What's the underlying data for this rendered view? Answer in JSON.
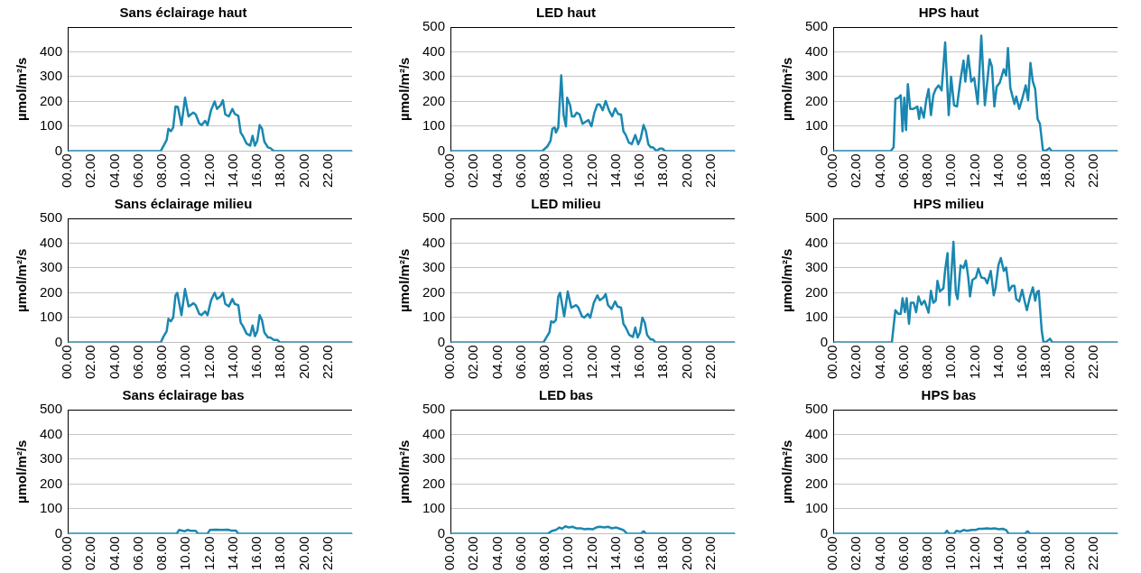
{
  "chart_data": [
    {
      "type": "line",
      "title": "Sans éclairage haut",
      "ylabel": "µmol/m²/s",
      "xlim": [
        0,
        24
      ],
      "xticks": [
        {
          "value": 0,
          "label": "00.00"
        },
        {
          "value": 2,
          "label": "02.00"
        },
        {
          "value": 4,
          "label": "04.00"
        },
        {
          "value": 6,
          "label": "06.00"
        },
        {
          "value": 8,
          "label": "08.00"
        },
        {
          "value": 10,
          "label": "10.00"
        },
        {
          "value": 12,
          "label": "12.00"
        },
        {
          "value": 14,
          "label": "14.00"
        },
        {
          "value": 16,
          "label": "16.00"
        },
        {
          "value": 18,
          "label": "18.00"
        },
        {
          "value": 20,
          "label": "20.00"
        },
        {
          "value": 22,
          "label": "22.00"
        }
      ],
      "ylim": [
        0,
        500
      ],
      "yticks": [
        0,
        100,
        200,
        300,
        400
      ],
      "grid": "y",
      "series": [
        {
          "color": "#1a87b0",
          "x": [
            0,
            7.85,
            8.1,
            8.35,
            8.5,
            8.7,
            8.9,
            9.1,
            9.3,
            9.6,
            9.9,
            10.2,
            10.4,
            10.6,
            10.8,
            11.1,
            11.3,
            11.6,
            11.8,
            12.1,
            12.4,
            12.6,
            12.9,
            13.1,
            13.3,
            13.6,
            13.9,
            14.1,
            14.4,
            14.6,
            14.8,
            15.1,
            15.4,
            15.6,
            15.8,
            16.0,
            16.2,
            16.4,
            16.6,
            16.9,
            17.1,
            17.4,
            24
          ],
          "values": [
            0,
            0,
            22,
            45,
            90,
            80,
            95,
            180,
            178,
            105,
            215,
            140,
            148,
            155,
            148,
            112,
            105,
            122,
            105,
            165,
            200,
            170,
            185,
            205,
            148,
            140,
            170,
            150,
            142,
            75,
            60,
            30,
            22,
            62,
            22,
            42,
            105,
            90,
            38,
            15,
            12,
            0,
            0
          ]
        }
      ]
    },
    {
      "type": "line",
      "title": "LED haut",
      "ylabel": "µmol/m²/s",
      "xlim": [
        0,
        24
      ],
      "xticks": [
        {
          "value": 0,
          "label": "00.00"
        },
        {
          "value": 2,
          "label": "02.00"
        },
        {
          "value": 4,
          "label": "04.00"
        },
        {
          "value": 6,
          "label": "06.00"
        },
        {
          "value": 8,
          "label": "08.00"
        },
        {
          "value": 10,
          "label": "10.00"
        },
        {
          "value": 12,
          "label": "12.00"
        },
        {
          "value": 14,
          "label": "14.00"
        },
        {
          "value": 16,
          "label": "16.00"
        },
        {
          "value": 18,
          "label": "18.00"
        },
        {
          "value": 20,
          "label": "20.00"
        },
        {
          "value": 22,
          "label": "22.00"
        }
      ],
      "ylim": [
        0,
        500
      ],
      "yticks": [
        0,
        100,
        200,
        300,
        400,
        500
      ],
      "grid": "y",
      "series": [
        {
          "color": "#1a87b0",
          "x": [
            0,
            7.75,
            8.2,
            8.45,
            8.6,
            8.8,
            8.9,
            9.1,
            9.35,
            9.55,
            9.75,
            9.85,
            10.1,
            10.25,
            10.45,
            10.65,
            10.9,
            11.15,
            11.4,
            11.65,
            11.9,
            12.15,
            12.4,
            12.6,
            12.85,
            13.1,
            13.4,
            13.65,
            13.9,
            14.15,
            14.4,
            14.6,
            14.8,
            15.05,
            15.3,
            15.6,
            15.85,
            16.05,
            16.3,
            16.5,
            16.7,
            16.9,
            17.1,
            17.4,
            17.65,
            17.9,
            18.1,
            24
          ],
          "values": [
            0,
            0,
            20,
            42,
            90,
            95,
            75,
            95,
            305,
            145,
            100,
            215,
            185,
            140,
            140,
            155,
            148,
            110,
            118,
            125,
            100,
            155,
            188,
            188,
            165,
            202,
            162,
            140,
            172,
            150,
            147,
            80,
            65,
            35,
            28,
            65,
            28,
            50,
            105,
            80,
            28,
            15,
            15,
            0,
            10,
            10,
            0,
            0
          ]
        }
      ]
    },
    {
      "type": "line",
      "title": "HPS haut",
      "ylabel": "µmol/m²/s",
      "xlim": [
        0,
        24
      ],
      "xticks": [
        {
          "value": 0,
          "label": "00.00"
        },
        {
          "value": 2,
          "label": "02.00"
        },
        {
          "value": 4,
          "label": "04.00"
        },
        {
          "value": 6,
          "label": "06.00"
        },
        {
          "value": 8,
          "label": "08.00"
        },
        {
          "value": 10,
          "label": "10.00"
        },
        {
          "value": 12,
          "label": "12.00"
        },
        {
          "value": 14,
          "label": "14.00"
        },
        {
          "value": 16,
          "label": "16.00"
        },
        {
          "value": 18,
          "label": "18.00"
        },
        {
          "value": 20,
          "label": "20.00"
        },
        {
          "value": 22,
          "label": "22.00"
        }
      ],
      "ylim": [
        0,
        500
      ],
      "yticks": [
        0,
        100,
        200,
        300,
        400,
        500
      ],
      "grid": "y",
      "series": [
        {
          "color": "#1a87b0",
          "x": [
            0,
            4.85,
            5.1,
            5.25,
            5.5,
            5.7,
            5.85,
            6.0,
            6.15,
            6.3,
            6.5,
            6.75,
            6.95,
            7.1,
            7.25,
            7.4,
            7.65,
            7.85,
            8.05,
            8.25,
            8.45,
            8.65,
            8.9,
            9.15,
            9.45,
            9.75,
            9.95,
            10.2,
            10.45,
            10.75,
            11.0,
            11.15,
            11.4,
            11.65,
            11.9,
            12.2,
            12.5,
            12.8,
            13.2,
            13.4,
            13.6,
            13.8,
            14.05,
            14.4,
            14.6,
            14.75,
            14.95,
            15.3,
            15.45,
            15.7,
            15.95,
            16.25,
            16.45,
            16.65,
            16.85,
            17.05,
            17.25,
            17.45,
            17.7,
            17.9,
            18.25,
            18.45,
            24
          ],
          "values": [
            0,
            0,
            15,
            210,
            215,
            225,
            80,
            215,
            85,
            270,
            170,
            170,
            175,
            180,
            130,
            175,
            135,
            205,
            250,
            145,
            225,
            250,
            265,
            245,
            438,
            145,
            300,
            185,
            180,
            290,
            365,
            280,
            385,
            280,
            295,
            190,
            465,
            185,
            370,
            340,
            180,
            260,
            275,
            330,
            305,
            415,
            255,
            190,
            220,
            170,
            210,
            265,
            205,
            355,
            280,
            250,
            130,
            110,
            5,
            0,
            12,
            0,
            0
          ]
        }
      ]
    },
    {
      "type": "line",
      "title": "Sans éclairage milieu",
      "ylabel": "µmol/m²/s",
      "xlim": [
        0,
        24
      ],
      "xticks": [
        {
          "value": 0,
          "label": "00.00"
        },
        {
          "value": 2,
          "label": "02.00"
        },
        {
          "value": 4,
          "label": "04.00"
        },
        {
          "value": 6,
          "label": "06.00"
        },
        {
          "value": 8,
          "label": "08.00"
        },
        {
          "value": 10,
          "label": "10.00"
        },
        {
          "value": 12,
          "label": "12.00"
        },
        {
          "value": 14,
          "label": "14.00"
        },
        {
          "value": 16,
          "label": "16.00"
        },
        {
          "value": 18,
          "label": "18.00"
        },
        {
          "value": 20,
          "label": "20.00"
        },
        {
          "value": 22,
          "label": "22.00"
        }
      ],
      "ylim": [
        0,
        500
      ],
      "yticks": [
        0,
        100,
        200,
        300,
        400,
        500
      ],
      "grid": "y",
      "series": [
        {
          "color": "#1a87b0",
          "x": [
            0,
            7.85,
            8.1,
            8.35,
            8.5,
            8.7,
            8.9,
            9.1,
            9.25,
            9.6,
            9.9,
            10.2,
            10.4,
            10.6,
            10.8,
            11.1,
            11.3,
            11.6,
            11.8,
            12.1,
            12.4,
            12.6,
            12.9,
            13.1,
            13.3,
            13.6,
            13.9,
            14.1,
            14.4,
            14.6,
            14.8,
            15.1,
            15.4,
            15.6,
            15.8,
            16.0,
            16.2,
            16.4,
            16.6,
            16.9,
            17.1,
            17.4,
            17.7,
            17.9,
            24
          ],
          "values": [
            0,
            0,
            25,
            45,
            95,
            85,
            100,
            190,
            200,
            110,
            215,
            145,
            150,
            158,
            150,
            115,
            110,
            125,
            110,
            170,
            200,
            175,
            185,
            200,
            155,
            145,
            175,
            155,
            150,
            80,
            65,
            35,
            28,
            68,
            25,
            45,
            110,
            90,
            40,
            20,
            20,
            10,
            10,
            0,
            0
          ]
        }
      ]
    },
    {
      "type": "line",
      "title": "LED milieu",
      "ylabel": "µmol/m²/s",
      "xlim": [
        0,
        24
      ],
      "xticks": [
        {
          "value": 0,
          "label": "00.00"
        },
        {
          "value": 2,
          "label": "02.00"
        },
        {
          "value": 4,
          "label": "04.00"
        },
        {
          "value": 6,
          "label": "06.00"
        },
        {
          "value": 8,
          "label": "08.00"
        },
        {
          "value": 10,
          "label": "10.00"
        },
        {
          "value": 12,
          "label": "12.00"
        },
        {
          "value": 14,
          "label": "14.00"
        },
        {
          "value": 16,
          "label": "16.00"
        },
        {
          "value": 18,
          "label": "18.00"
        },
        {
          "value": 20,
          "label": "20.00"
        },
        {
          "value": 22,
          "label": "22.00"
        }
      ],
      "ylim": [
        0,
        500
      ],
      "yticks": [
        0,
        100,
        200,
        300,
        400,
        500
      ],
      "grid": "y",
      "series": [
        {
          "color": "#1a87b0",
          "x": [
            0,
            7.85,
            8.1,
            8.35,
            8.5,
            8.7,
            8.9,
            9.1,
            9.25,
            9.6,
            9.9,
            10.2,
            10.4,
            10.6,
            10.8,
            11.1,
            11.3,
            11.6,
            11.8,
            12.1,
            12.4,
            12.6,
            12.9,
            13.1,
            13.3,
            13.6,
            13.9,
            14.1,
            14.4,
            14.6,
            14.8,
            15.1,
            15.4,
            15.6,
            15.8,
            16.0,
            16.2,
            16.4,
            16.6,
            16.9,
            17.1,
            17.3,
            24
          ],
          "values": [
            0,
            0,
            20,
            40,
            85,
            80,
            90,
            185,
            200,
            105,
            205,
            140,
            145,
            150,
            140,
            105,
            100,
            115,
            100,
            160,
            190,
            170,
            180,
            195,
            150,
            135,
            165,
            145,
            140,
            75,
            60,
            30,
            22,
            60,
            20,
            40,
            100,
            80,
            30,
            12,
            12,
            0,
            0
          ]
        }
      ]
    },
    {
      "type": "line",
      "title": "HPS milieu",
      "ylabel": "µmol/m²/s",
      "xlim": [
        0,
        24
      ],
      "xticks": [
        {
          "value": 0,
          "label": "00.00"
        },
        {
          "value": 2,
          "label": "02.00"
        },
        {
          "value": 4,
          "label": "04.00"
        },
        {
          "value": 6,
          "label": "06.00"
        },
        {
          "value": 8,
          "label": "08.00"
        },
        {
          "value": 10,
          "label": "10.00"
        },
        {
          "value": 12,
          "label": "12.00"
        },
        {
          "value": 14,
          "label": "14.00"
        },
        {
          "value": 16,
          "label": "16.00"
        },
        {
          "value": 18,
          "label": "18.00"
        },
        {
          "value": 20,
          "label": "20.00"
        },
        {
          "value": 22,
          "label": "22.00"
        }
      ],
      "ylim": [
        0,
        500
      ],
      "yticks": [
        0,
        100,
        200,
        300,
        400,
        500
      ],
      "grid": "y",
      "series": [
        {
          "color": "#1a87b0",
          "x": [
            0,
            4.95,
            5.25,
            5.5,
            5.7,
            5.85,
            6.05,
            6.2,
            6.4,
            6.55,
            6.8,
            7.0,
            7.2,
            7.45,
            7.7,
            8.05,
            8.25,
            8.45,
            8.65,
            8.8,
            9.0,
            9.3,
            9.45,
            9.65,
            9.8,
            10.15,
            10.35,
            10.5,
            10.75,
            11.0,
            11.2,
            11.4,
            11.55,
            11.75,
            12.05,
            12.25,
            12.5,
            12.8,
            13.0,
            13.3,
            13.55,
            13.7,
            13.95,
            14.15,
            14.4,
            14.6,
            14.85,
            15.1,
            15.3,
            15.45,
            15.7,
            15.95,
            16.15,
            16.35,
            16.6,
            16.85,
            17.05,
            17.2,
            17.35,
            17.6,
            17.75,
            18.0,
            18.3,
            18.5,
            24
          ],
          "values": [
            0,
            0,
            130,
            115,
            115,
            178,
            122,
            178,
            75,
            160,
            160,
            122,
            185,
            152,
            168,
            120,
            208,
            160,
            168,
            248,
            205,
            218,
            292,
            360,
            150,
            405,
            200,
            175,
            310,
            300,
            330,
            262,
            185,
            252,
            262,
            298,
            262,
            258,
            238,
            288,
            190,
            218,
            312,
            340,
            288,
            302,
            208,
            228,
            228,
            175,
            165,
            212,
            168,
            130,
            182,
            222,
            168,
            203,
            208,
            48,
            0,
            3,
            15,
            0,
            0
          ]
        }
      ]
    },
    {
      "type": "line",
      "title": "Sans éclairage bas",
      "ylabel": "µmol/m²/s",
      "xlim": [
        0,
        24
      ],
      "xticks": [
        {
          "value": 0,
          "label": "00.00"
        },
        {
          "value": 2,
          "label": "02.00"
        },
        {
          "value": 4,
          "label": "04.00"
        },
        {
          "value": 6,
          "label": "06.00"
        },
        {
          "value": 8,
          "label": "08.00"
        },
        {
          "value": 10,
          "label": "10.00"
        },
        {
          "value": 12,
          "label": "12.00"
        },
        {
          "value": 14,
          "label": "14.00"
        },
        {
          "value": 16,
          "label": "16.00"
        },
        {
          "value": 18,
          "label": "18.00"
        },
        {
          "value": 20,
          "label": "20.00"
        },
        {
          "value": 22,
          "label": "22.00"
        }
      ],
      "ylim": [
        0,
        500
      ],
      "yticks": [
        0,
        100,
        200,
        300,
        400,
        500
      ],
      "grid": "y",
      "series": [
        {
          "color": "#1a87b0",
          "x": [
            0,
            9.2,
            9.4,
            9.7,
            9.9,
            10.1,
            10.4,
            10.8,
            11.0,
            11.8,
            12.0,
            12.5,
            13.0,
            13.5,
            13.8,
            14.2,
            14.4,
            24
          ],
          "values": [
            0,
            0,
            15,
            12,
            10,
            15,
            12,
            12,
            0,
            0,
            15,
            16,
            15,
            16,
            13,
            13,
            0,
            0
          ]
        }
      ]
    },
    {
      "type": "line",
      "title": "LED bas",
      "ylabel": "µmol/m²/s",
      "xlim": [
        0,
        24
      ],
      "xticks": [
        {
          "value": 0,
          "label": "00.00"
        },
        {
          "value": 2,
          "label": "02.00"
        },
        {
          "value": 4,
          "label": "04.00"
        },
        {
          "value": 6,
          "label": "06.00"
        },
        {
          "value": 8,
          "label": "08.00"
        },
        {
          "value": 10,
          "label": "10.00"
        },
        {
          "value": 12,
          "label": "12.00"
        },
        {
          "value": 14,
          "label": "14.00"
        },
        {
          "value": 16,
          "label": "16.00"
        },
        {
          "value": 18,
          "label": "18.00"
        },
        {
          "value": 20,
          "label": "20.00"
        },
        {
          "value": 22,
          "label": "22.00"
        }
      ],
      "ylim": [
        0,
        500
      ],
      "yticks": [
        0,
        100,
        200,
        300,
        400,
        500
      ],
      "grid": "y",
      "series": [
        {
          "color": "#1a87b0",
          "x": [
            0,
            8.2,
            8.6,
            8.9,
            9.2,
            9.4,
            9.7,
            10.0,
            10.3,
            10.6,
            11.0,
            11.3,
            11.6,
            12.0,
            12.3,
            12.6,
            13.0,
            13.3,
            13.6,
            14.0,
            14.3,
            14.6,
            14.9,
            16.1,
            16.3,
            16.5,
            24
          ],
          "values": [
            0,
            0,
            12,
            15,
            25,
            20,
            30,
            25,
            28,
            22,
            22,
            18,
            20,
            18,
            25,
            28,
            25,
            28,
            22,
            25,
            20,
            15,
            0,
            0,
            10,
            0,
            0
          ]
        }
      ]
    },
    {
      "type": "line",
      "title": "HPS bas",
      "ylabel": "µmol/m²/s",
      "xlim": [
        0,
        24
      ],
      "xticks": [
        {
          "value": 0,
          "label": "00.00"
        },
        {
          "value": 2,
          "label": "02.00"
        },
        {
          "value": 4,
          "label": "04.00"
        },
        {
          "value": 6,
          "label": "06.00"
        },
        {
          "value": 8,
          "label": "08.00"
        },
        {
          "value": 10,
          "label": "10.00"
        },
        {
          "value": 12,
          "label": "12.00"
        },
        {
          "value": 14,
          "label": "14.00"
        },
        {
          "value": 16,
          "label": "16.00"
        },
        {
          "value": 18,
          "label": "18.00"
        },
        {
          "value": 20,
          "label": "20.00"
        },
        {
          "value": 22,
          "label": "22.00"
        }
      ],
      "ylim": [
        0,
        500
      ],
      "yticks": [
        0,
        100,
        200,
        300,
        400,
        500
      ],
      "grid": "y",
      "series": [
        {
          "color": "#1a87b0",
          "x": [
            0,
            9.4,
            9.6,
            9.8,
            10.2,
            10.4,
            10.7,
            11.0,
            11.3,
            11.7,
            12.0,
            12.3,
            12.6,
            13.0,
            13.3,
            13.6,
            14.0,
            14.3,
            14.6,
            14.8,
            16.2,
            16.4,
            16.6,
            24
          ],
          "values": [
            0,
            0,
            12,
            0,
            0,
            12,
            8,
            15,
            12,
            15,
            15,
            20,
            20,
            22,
            20,
            22,
            18,
            20,
            15,
            0,
            0,
            10,
            0,
            0
          ]
        }
      ]
    }
  ]
}
